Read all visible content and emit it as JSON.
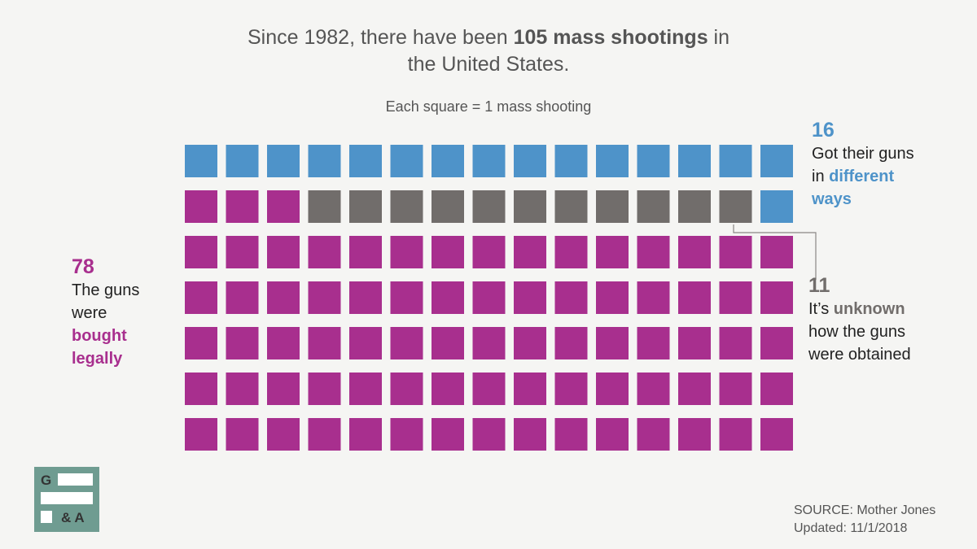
{
  "title": {
    "part1": "Since 1982, there have been ",
    "bold": "105 mass shootings",
    "part2": " in",
    "line2": "the United States."
  },
  "subtitle": "Each square = 1 mass shooting",
  "chart_data": {
    "type": "waffle",
    "total": 105,
    "grid": {
      "rows": 7,
      "cols": 15
    },
    "categories": [
      {
        "count": 16,
        "color": "#4e93c9",
        "label": "Got their guns in different ways"
      },
      {
        "count": 11,
        "color": "#716d6b",
        "label": "It's unknown how the guns were obtained"
      },
      {
        "count": 78,
        "color": "#a82f8e",
        "label": "The guns were bought legally"
      }
    ],
    "cells": [
      [
        "blue",
        "blue",
        "blue",
        "blue",
        "blue",
        "blue",
        "blue",
        "blue",
        "blue",
        "blue",
        "blue",
        "blue",
        "blue",
        "blue",
        "blue"
      ],
      [
        "mag",
        "mag",
        "mag",
        "grey",
        "grey",
        "grey",
        "grey",
        "grey",
        "grey",
        "grey",
        "grey",
        "grey",
        "grey",
        "grey",
        "blue"
      ],
      [
        "mag",
        "mag",
        "mag",
        "mag",
        "mag",
        "mag",
        "mag",
        "mag",
        "mag",
        "mag",
        "mag",
        "mag",
        "mag",
        "mag",
        "mag"
      ],
      [
        "mag",
        "mag",
        "mag",
        "mag",
        "mag",
        "mag",
        "mag",
        "mag",
        "mag",
        "mag",
        "mag",
        "mag",
        "mag",
        "mag",
        "mag"
      ],
      [
        "mag",
        "mag",
        "mag",
        "mag",
        "mag",
        "mag",
        "mag",
        "mag",
        "mag",
        "mag",
        "mag",
        "mag",
        "mag",
        "mag",
        "mag"
      ],
      [
        "mag",
        "mag",
        "mag",
        "mag",
        "mag",
        "mag",
        "mag",
        "mag",
        "mag",
        "mag",
        "mag",
        "mag",
        "mag",
        "mag",
        "mag"
      ],
      [
        "mag",
        "mag",
        "mag",
        "mag",
        "mag",
        "mag",
        "mag",
        "mag",
        "mag",
        "mag",
        "mag",
        "mag",
        "mag",
        "mag",
        "mag"
      ]
    ]
  },
  "colors": {
    "blue": "#4e93c9",
    "grey": "#716d6b",
    "mag": "#a82f8e"
  },
  "annotations": {
    "top": {
      "number": "16",
      "line1": "Got their guns",
      "line2_pre": "in ",
      "line2_em": "different",
      "line3_em": "ways"
    },
    "right": {
      "number": "11",
      "line1_pre": "It’s ",
      "line1_em": "unknown",
      "line2": "how the guns",
      "line3": "were obtained"
    },
    "left": {
      "number": "78",
      "line1": "The guns",
      "line2": "were",
      "line3_em": "bought",
      "line4_em": "legally"
    }
  },
  "logo": {
    "g": "G",
    "amp": "& A"
  },
  "source": {
    "line1": "SOURCE: Mother Jones",
    "line2": "Updated: 11/1/2018"
  }
}
